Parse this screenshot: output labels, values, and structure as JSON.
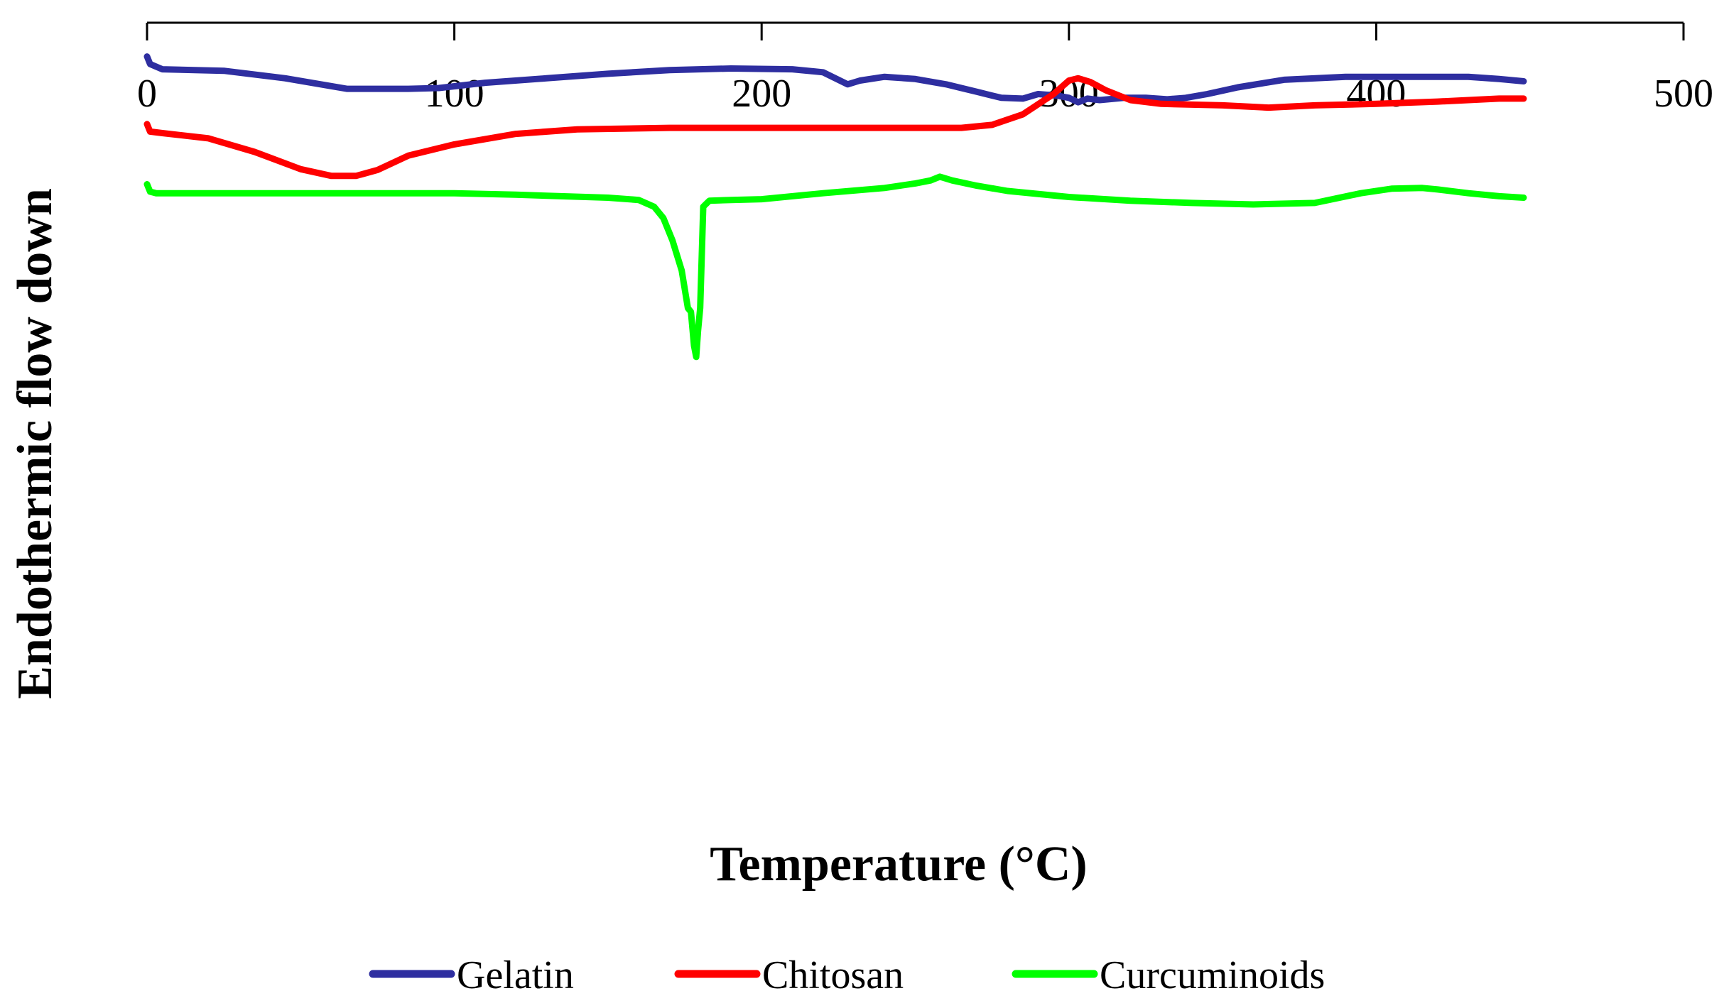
{
  "chart_data": {
    "type": "line",
    "title": "",
    "xlabel": "Temperature (°C)",
    "ylabel": "Endothermic flow down",
    "xlim": [
      0,
      500
    ],
    "ylim": [
      0,
      100
    ],
    "xticks": [
      "0",
      "100",
      "200",
      "300",
      "400",
      "500"
    ],
    "x_axis_position": "top",
    "y_axis_visible": false,
    "legend_position": "bottom",
    "series": [
      {
        "name": "Gelatin",
        "color": "#2E2EA0",
        "x": [
          0,
          1,
          5,
          25,
          45,
          65,
          75,
          85,
          95,
          110,
          130,
          150,
          170,
          190,
          210,
          220,
          228,
          232,
          240,
          250,
          260,
          270,
          278,
          285,
          290,
          296,
          300,
          303,
          306,
          310,
          318,
          325,
          332,
          338,
          345,
          355,
          370,
          390,
          410,
          430,
          440,
          448
        ],
        "y": [
          95.5,
          94.5,
          93.8,
          93.6,
          92.6,
          91.2,
          91.2,
          91.2,
          91.3,
          92.0,
          92.6,
          93.2,
          93.7,
          93.9,
          93.8,
          93.4,
          91.8,
          92.3,
          92.8,
          92.5,
          91.8,
          90.8,
          90.0,
          89.9,
          90.5,
          90.3,
          90.0,
          89.4,
          89.9,
          89.7,
          90.0,
          90.0,
          89.8,
          90.0,
          90.5,
          91.4,
          92.4,
          92.8,
          92.8,
          92.8,
          92.5,
          92.2
        ]
      },
      {
        "name": "Chitosan",
        "color": "#FF0000",
        "x": [
          0,
          1,
          5,
          20,
          35,
          50,
          60,
          68,
          75,
          85,
          100,
          120,
          140,
          170,
          200,
          240,
          265,
          275,
          285,
          295,
          300,
          303,
          307,
          312,
          320,
          330,
          350,
          365,
          380,
          400,
          420,
          440,
          448
        ],
        "y": [
          86.5,
          85.5,
          85.3,
          84.6,
          82.8,
          80.5,
          79.6,
          79.6,
          80.4,
          82.3,
          83.8,
          85.2,
          85.8,
          86.0,
          86.0,
          86.0,
          86.0,
          86.4,
          87.8,
          90.5,
          92.3,
          92.6,
          92.1,
          91.0,
          89.7,
          89.2,
          89.0,
          88.7,
          89.0,
          89.2,
          89.5,
          89.9,
          89.9
        ]
      },
      {
        "name": "Curcuminoids",
        "color": "#00FF00",
        "x": [
          0,
          1,
          3,
          20,
          50,
          100,
          120,
          150,
          160,
          165,
          168,
          171,
          174,
          176,
          177,
          178,
          178.7,
          179.3,
          180,
          181,
          183,
          190,
          200,
          220,
          240,
          250,
          255,
          258,
          262,
          270,
          280,
          300,
          320,
          340,
          360,
          380,
          395,
          405,
          415,
          420,
          430,
          440,
          448
        ],
        "y": [
          78.5,
          77.5,
          77.3,
          77.3,
          77.3,
          77.3,
          77.1,
          76.7,
          76.4,
          75.5,
          74.0,
          71.0,
          67.0,
          62.0,
          61.5,
          57.0,
          55.5,
          59.0,
          62.0,
          75.5,
          76.3,
          76.4,
          76.5,
          77.3,
          78.0,
          78.6,
          79.0,
          79.5,
          79.0,
          78.3,
          77.6,
          76.8,
          76.3,
          76.0,
          75.8,
          76.0,
          77.3,
          77.9,
          78.0,
          77.8,
          77.3,
          76.9,
          76.7
        ]
      }
    ]
  }
}
